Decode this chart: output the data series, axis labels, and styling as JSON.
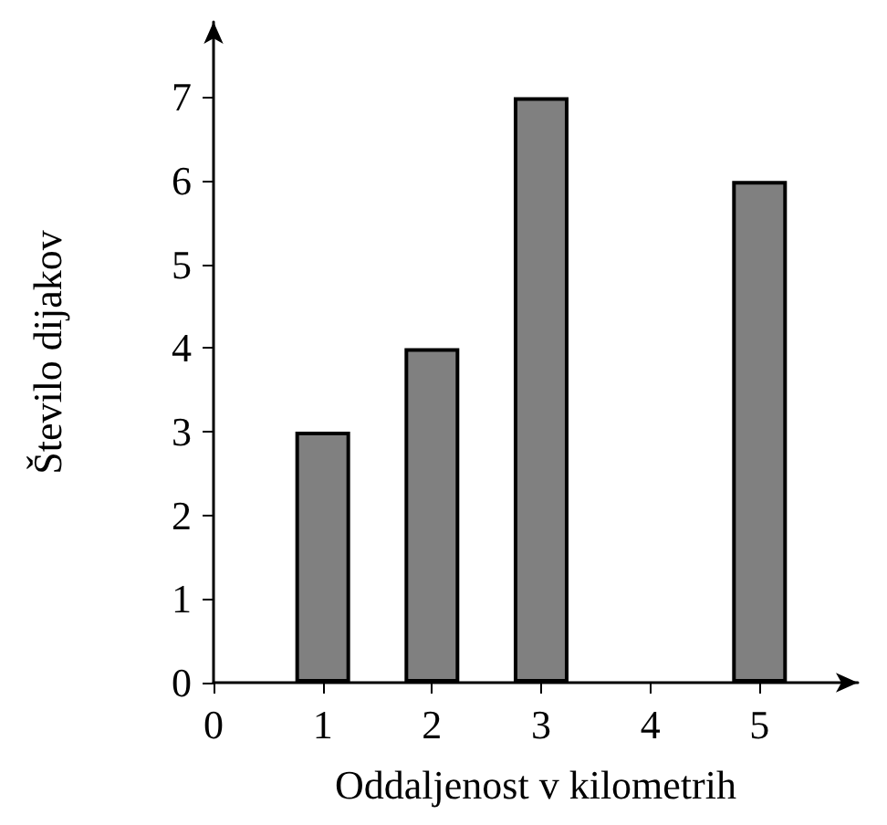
{
  "chart_data": {
    "type": "bar",
    "xlabel": "Oddaljenost v kilometrih",
    "ylabel": "Število dijakov",
    "x": [
      1,
      2,
      3,
      5
    ],
    "values": [
      3,
      4,
      7,
      6
    ],
    "color": "#808080",
    "xlim": [
      0,
      5.9
    ],
    "xticks": [
      0,
      1,
      2,
      3,
      4,
      5
    ],
    "ylim": [
      0,
      7.9
    ],
    "yticks": [
      0,
      1,
      2,
      3,
      4,
      5,
      6,
      7
    ],
    "grid": false
  }
}
